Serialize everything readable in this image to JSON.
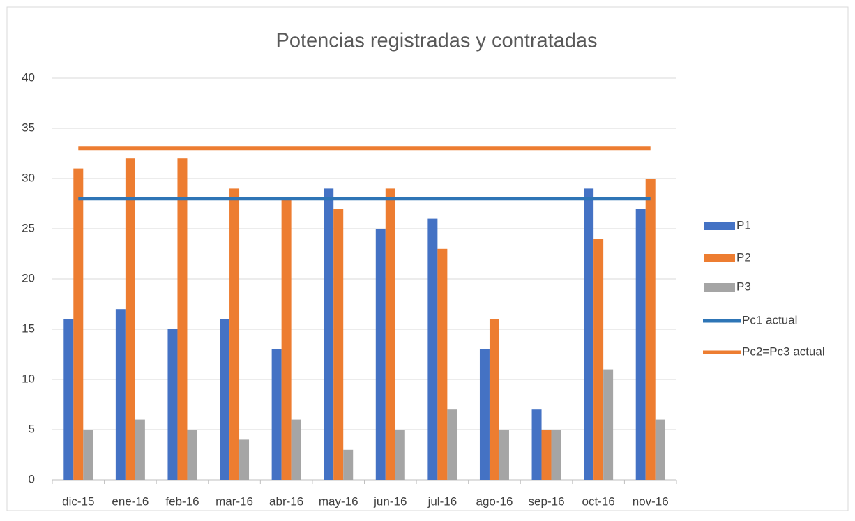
{
  "chart_data": {
    "type": "bar",
    "title": "Potencias registradas y contratadas",
    "categories": [
      "dic-15",
      "ene-16",
      "feb-16",
      "mar-16",
      "abr-16",
      "may-16",
      "jun-16",
      "jul-16",
      "ago-16",
      "sep-16",
      "oct-16",
      "nov-16"
    ],
    "series": [
      {
        "name": "P1",
        "type": "bar",
        "color": "#4472c4",
        "values": [
          16,
          17,
          15,
          16,
          13,
          29,
          25,
          26,
          13,
          7,
          29,
          27
        ]
      },
      {
        "name": "P2",
        "type": "bar",
        "color": "#ed7d31",
        "values": [
          31,
          32,
          32,
          29,
          28,
          27,
          29,
          23,
          16,
          5,
          24,
          30
        ]
      },
      {
        "name": "P3",
        "type": "bar",
        "color": "#a5a5a5",
        "values": [
          5,
          6,
          5,
          4,
          6,
          3,
          5,
          7,
          5,
          5,
          11,
          6
        ]
      },
      {
        "name": "Pc1 actual",
        "type": "line",
        "color": "#2e75b6",
        "values": [
          28,
          28,
          28,
          28,
          28,
          28,
          28,
          28,
          28,
          28,
          28,
          28
        ]
      },
      {
        "name": "Pc2=Pc3 actual",
        "type": "line",
        "color": "#ed7d31",
        "values": [
          33,
          33,
          33,
          33,
          33,
          33,
          33,
          33,
          33,
          33,
          33,
          33
        ]
      }
    ],
    "ylim": [
      0,
      40
    ],
    "yticks": [
      0,
      5,
      10,
      15,
      20,
      25,
      30,
      35,
      40
    ],
    "grid": true,
    "legend": "right"
  }
}
